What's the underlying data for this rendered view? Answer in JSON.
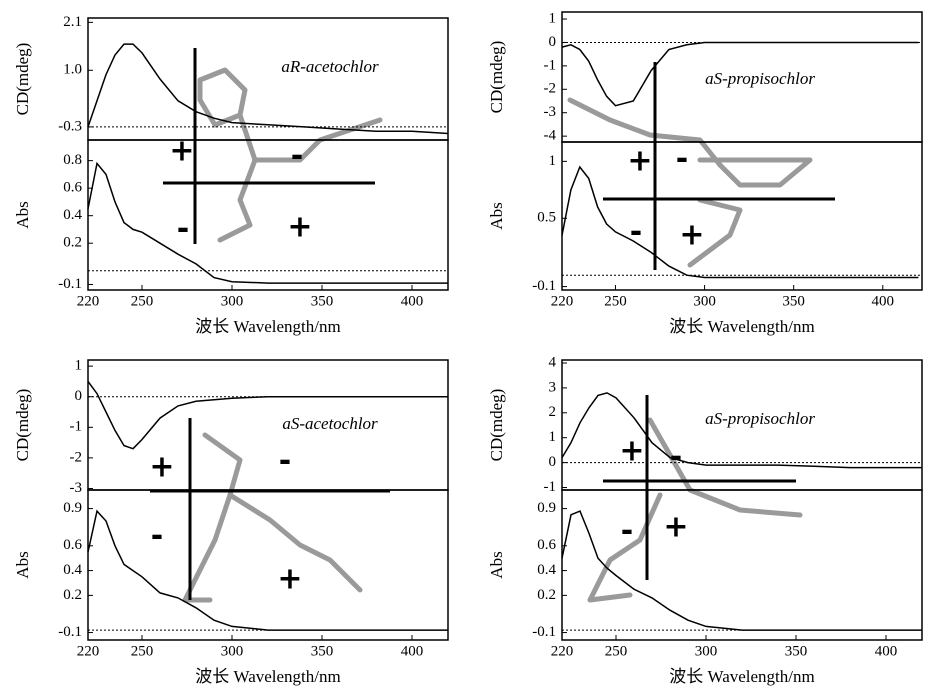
{
  "chart_data": [
    {
      "type": "line",
      "ylabel": "CD(mdeg)",
      "annotation": "aR-acetochlor",
      "signs": [
        "+",
        "-",
        "-",
        "+"
      ],
      "baseline": -0.3,
      "xlim": [
        220,
        420
      ],
      "ylim": [
        -0.6,
        2.2
      ],
      "yticks": [
        2.1,
        {
          "value": 1,
          "label": "1.0"
        },
        -0.3
      ],
      "color": "#000000",
      "x": [
        220,
        225,
        230,
        235,
        240,
        245,
        250,
        260,
        270,
        280,
        290,
        300,
        320,
        340,
        360,
        380,
        400,
        420
      ],
      "values": [
        -0.3,
        0.3,
        0.9,
        1.35,
        1.6,
        1.6,
        1.4,
        0.8,
        0.3,
        0.05,
        -0.1,
        -0.2,
        -0.25,
        -0.3,
        -0.35,
        -0.4,
        -0.4,
        -0.45
      ]
    },
    {
      "type": "line",
      "ylabel": "Abs",
      "xlabel": "波长 Wavelength/nm",
      "baseline": 0,
      "xlim": [
        220,
        420
      ],
      "ylim": [
        -0.14,
        0.95
      ],
      "yticks": [
        0.8,
        0.6,
        0.4,
        0.2,
        -0.1
      ],
      "xticks": [
        220,
        250,
        300,
        350,
        400
      ],
      "color": "#000000",
      "x": [
        220,
        225,
        230,
        235,
        240,
        245,
        250,
        260,
        270,
        280,
        290,
        300,
        320,
        340,
        360,
        380,
        400,
        420
      ],
      "values": [
        0.45,
        0.78,
        0.7,
        0.5,
        0.35,
        0.3,
        0.28,
        0.2,
        0.12,
        0.05,
        -0.05,
        -0.08,
        -0.09,
        -0.09,
        -0.09,
        -0.09,
        -0.09,
        -0.09
      ]
    },
    {
      "type": "line",
      "ylabel": "CD(mdeg)",
      "annotation": "aS-propisochlor",
      "signs": [
        "+",
        "-",
        "-",
        "+"
      ],
      "baseline": 0,
      "xlim": [
        220,
        422
      ],
      "ylim": [
        -4.25,
        1.3
      ],
      "yticks": [
        1,
        0,
        -1,
        -2,
        -3,
        -4
      ],
      "color": "#000000",
      "x": [
        220,
        225,
        230,
        235,
        240,
        245,
        250,
        260,
        270,
        280,
        290,
        300,
        320,
        340,
        360,
        380,
        400,
        420
      ],
      "values": [
        -0.2,
        -0.1,
        -0.3,
        -0.8,
        -1.6,
        -2.3,
        -2.7,
        -2.5,
        -1.2,
        -0.3,
        -0.1,
        0,
        0,
        0,
        0,
        0,
        0,
        0
      ]
    },
    {
      "type": "line",
      "ylabel": "Abs",
      "xlabel": "波长 Wavelength/nm",
      "baseline": 0,
      "xlim": [
        220,
        422
      ],
      "ylim": [
        -0.13,
        1.17
      ],
      "yticks": [
        1,
        0.5,
        -0.1
      ],
      "xticks": [
        220,
        250,
        300,
        350,
        400
      ],
      "color": "#000000",
      "x": [
        220,
        225,
        230,
        235,
        240,
        245,
        250,
        260,
        270,
        280,
        290,
        300,
        320,
        340,
        360,
        380,
        400,
        420
      ],
      "values": [
        0.35,
        0.75,
        0.95,
        0.85,
        0.6,
        0.45,
        0.38,
        0.3,
        0.2,
        0.08,
        0,
        -0.02,
        -0.02,
        -0.02,
        -0.02,
        -0.02,
        -0.02,
        -0.02
      ]
    },
    {
      "type": "line",
      "ylabel": "CD(mdeg)",
      "annotation": "aS-acetochlor",
      "signs": [
        "+",
        "-",
        "-",
        "+"
      ],
      "baseline": 0,
      "xlim": [
        220,
        420
      ],
      "ylim": [
        -3.05,
        1.2
      ],
      "yticks": [
        1,
        0,
        -1,
        -2,
        -3
      ],
      "color": "#000000",
      "x": [
        220,
        225,
        230,
        235,
        240,
        245,
        250,
        260,
        270,
        280,
        290,
        300,
        320,
        340,
        360,
        380,
        400,
        420
      ],
      "values": [
        0.5,
        0.1,
        -0.5,
        -1.1,
        -1.6,
        -1.7,
        -1.4,
        -0.7,
        -0.3,
        -0.15,
        -0.1,
        -0.05,
        0,
        0,
        0,
        0,
        0,
        0
      ]
    },
    {
      "type": "line",
      "ylabel": "Abs",
      "xlabel": "波长 Wavelength/nm",
      "baseline": -0.08,
      "xlim": [
        220,
        420
      ],
      "ylim": [
        -0.16,
        1.05
      ],
      "yticks": [
        0.9,
        0.6,
        0.4,
        0.2,
        -0.1
      ],
      "xticks": [
        220,
        250,
        300,
        350,
        400
      ],
      "color": "#000000",
      "x": [
        220,
        225,
        230,
        235,
        240,
        245,
        250,
        260,
        270,
        280,
        290,
        300,
        320,
        340,
        360,
        380,
        400,
        420
      ],
      "values": [
        0.55,
        0.88,
        0.8,
        0.6,
        0.45,
        0.4,
        0.35,
        0.22,
        0.18,
        0.1,
        0,
        -0.05,
        -0.08,
        -0.08,
        -0.08,
        -0.08,
        -0.08,
        -0.08
      ]
    },
    {
      "type": "line",
      "ylabel": "CD(mdeg)",
      "annotation": "aS-propisochlor",
      "signs": [
        "+",
        "-",
        "-",
        "+"
      ],
      "baseline": 0,
      "xlim": [
        220,
        420
      ],
      "ylim": [
        -1.1,
        4.12
      ],
      "yticks": [
        4,
        3,
        2,
        1,
        0,
        -1
      ],
      "color": "#000000",
      "x": [
        220,
        225,
        230,
        235,
        240,
        245,
        250,
        260,
        270,
        280,
        290,
        300,
        320,
        340,
        360,
        380,
        400,
        420
      ],
      "values": [
        0.2,
        0.8,
        1.6,
        2.2,
        2.7,
        2.8,
        2.6,
        1.8,
        0.8,
        0.2,
        0,
        -0.1,
        -0.1,
        -0.1,
        -0.15,
        -0.2,
        -0.2,
        -0.2
      ]
    },
    {
      "type": "line",
      "ylabel": "Abs",
      "xlabel": "波长 Wavelength/nm",
      "baseline": -0.08,
      "xlim": [
        220,
        420
      ],
      "ylim": [
        -0.16,
        1.05
      ],
      "yticks": [
        0.9,
        0.6,
        0.4,
        0.2,
        -0.1
      ],
      "xticks": [
        220,
        250,
        300,
        350,
        400
      ],
      "color": "#000000",
      "x": [
        220,
        225,
        230,
        235,
        240,
        245,
        250,
        260,
        270,
        280,
        290,
        300,
        320,
        340,
        360,
        380,
        400,
        420
      ],
      "values": [
        0.5,
        0.85,
        0.88,
        0.7,
        0.5,
        0.42,
        0.36,
        0.25,
        0.18,
        0.08,
        0,
        -0.05,
        -0.08,
        -0.08,
        -0.08,
        -0.08,
        -0.08,
        -0.08
      ]
    }
  ]
}
